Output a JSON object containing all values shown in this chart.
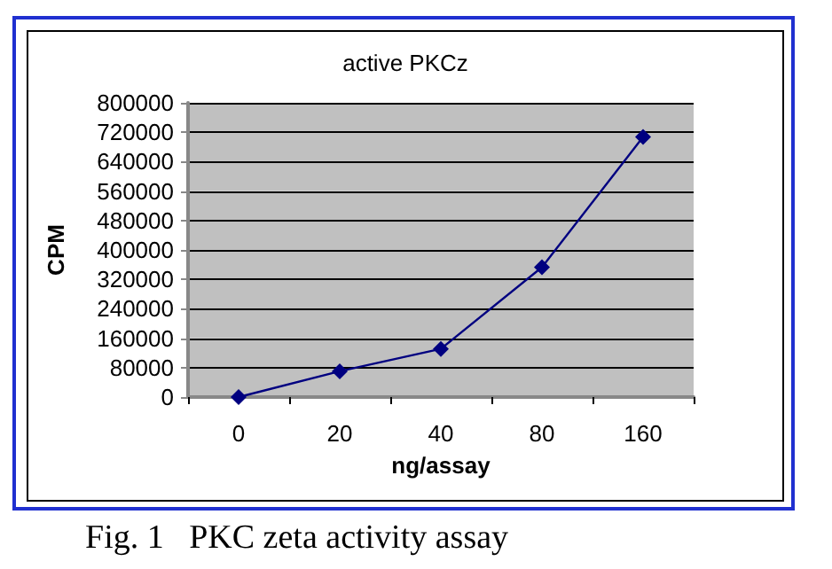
{
  "chart_data": {
    "type": "line",
    "title": "active PKCz",
    "xlabel": "ng/assay",
    "ylabel": "CPM",
    "categories": [
      "0",
      "20",
      "40",
      "80",
      "160"
    ],
    "series": [
      {
        "color": "#000080",
        "values": [
          0,
          70000,
          131000,
          353000,
          707000
        ]
      }
    ],
    "ylim": [
      0,
      800000
    ],
    "yticks": [
      0,
      80000,
      160000,
      240000,
      320000,
      400000,
      480000,
      560000,
      640000,
      720000,
      800000
    ],
    "grid": "y",
    "marker": "diamond",
    "line_style": "solid",
    "annotations": [
      "Fig. 1   PKC zeta activity assay"
    ]
  }
}
